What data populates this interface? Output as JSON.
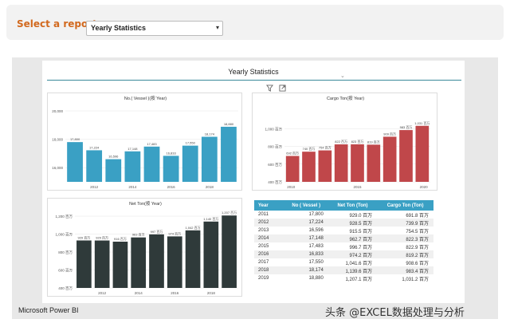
{
  "header": {
    "label": "Select a report:",
    "selected": "Yearly Statistics",
    "caret": "▾"
  },
  "canvas": {
    "title": "Yearly Statistics",
    "chevron": "⌄",
    "icons": [
      "filter-icon",
      "focus-mode-icon"
    ]
  },
  "footer": {
    "brand": "Microsoft Power BI",
    "watermark": "头条 @EXCEL数据处理与分析"
  },
  "colors": {
    "accent": "#d2691e",
    "teal": "#3aa0c4",
    "red": "#c0474a",
    "dark": "#2f3a3a"
  },
  "chart_data": [
    {
      "type": "bar",
      "title": "No.( Vessel )(按 Year)",
      "categories": [
        "2011",
        "2012",
        "2013",
        "2014",
        "2015",
        "2016",
        "2017",
        "2018",
        "2019"
      ],
      "values": [
        17800,
        17224,
        16596,
        17148,
        17483,
        16833,
        17550,
        18174,
        18880
      ],
      "data_labels": [
        "17,800",
        "17,224",
        "16,596",
        "17,148",
        "17,483",
        "16,833",
        "17,550",
        "18,174",
        "18,880"
      ],
      "ylim": [
        15000,
        20000
      ],
      "yticks": [
        "20,000",
        "18,000",
        "16,000"
      ],
      "xticks": [
        "2012",
        "2014",
        "2016",
        "2018"
      ],
      "color": "#3aa0c4"
    },
    {
      "type": "bar",
      "title": "Cargo Ton(按 Year)",
      "categories": [
        "2011",
        "2012",
        "2013",
        "2014",
        "2015",
        "2016",
        "2017",
        "2018",
        "2019"
      ],
      "values": [
        691.8,
        739.9,
        754.5,
        822.3,
        822.9,
        819.2,
        908.6,
        983.4,
        1031.2
      ],
      "data_labels": [
        "692 百万",
        "740 百万",
        "754 百万",
        "822 百万",
        "823 百万",
        "819 百万",
        "909 百万",
        "983 百万",
        "1,031 百万"
      ],
      "ylim": [
        400,
        1200
      ],
      "yticks": [
        "1,000 百万",
        "800 百万",
        "600 百万",
        "400 百万"
      ],
      "xticks": [
        "2010",
        "2015",
        "2020"
      ],
      "color": "#c0474a"
    },
    {
      "type": "bar",
      "title": "Net Ton(按 Year)",
      "categories": [
        "2011",
        "2012",
        "2013",
        "2014",
        "2015",
        "2016",
        "2017",
        "2018",
        "2019"
      ],
      "values": [
        929.0,
        928.5,
        915.5,
        962.7,
        996.7,
        974.2,
        1041.6,
        1139.6,
        1207.1
      ],
      "data_labels": [
        "929 百万",
        "929 百万",
        "916 百万",
        "963 百万",
        "997 百万",
        "974 百万",
        "1,042 百万",
        "1,140 百万",
        "1,207 百万"
      ],
      "ylim": [
        400,
        1200
      ],
      "yticks": [
        "1,200 百万",
        "1,000 百万",
        "800 百万",
        "600 百万",
        "400 百万"
      ],
      "xticks": [
        "2012",
        "2014",
        "2016",
        "2018"
      ],
      "color": "#2f3a3a"
    },
    {
      "type": "table",
      "columns": [
        "Year",
        "No ( Vessel )",
        "Net Ton (Ton)",
        "Cargo Ton (Ton)"
      ],
      "rows": [
        [
          "2011",
          "17,800",
          "929.0 百万",
          "691.8 百万"
        ],
        [
          "2012",
          "17,224",
          "928.5 百万",
          "739.9 百万"
        ],
        [
          "2013",
          "16,596",
          "915.5 百万",
          "754.5 百万"
        ],
        [
          "2014",
          "17,148",
          "962.7 百万",
          "822.3 百万"
        ],
        [
          "2015",
          "17,483",
          "996.7 百万",
          "822.9 百万"
        ],
        [
          "2016",
          "16,833",
          "974.2 百万",
          "819.2 百万"
        ],
        [
          "2017",
          "17,550",
          "1,041.6 百万",
          "908.6 百万"
        ],
        [
          "2018",
          "18,174",
          "1,139.6 百万",
          "983.4 百万"
        ],
        [
          "2019",
          "18,880",
          "1,207.1 百万",
          "1,031.2 百万"
        ]
      ]
    }
  ]
}
